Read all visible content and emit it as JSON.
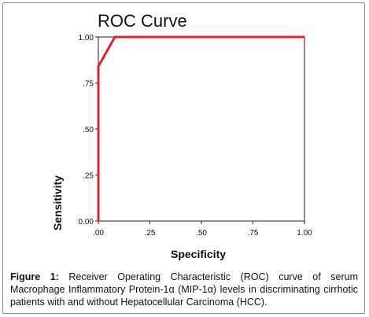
{
  "chart_data": {
    "type": "line",
    "title": "ROC Curve",
    "xlabel": "Specificity",
    "ylabel": "Sensitivity",
    "xlim": [
      0,
      1
    ],
    "ylim": [
      0,
      1
    ],
    "x_ticks": [
      ".00",
      ".25",
      ".50",
      ".75",
      "1.00"
    ],
    "y_ticks": [
      "0.00",
      ".25",
      ".50",
      ".75",
      "1.00"
    ],
    "grid": false,
    "series": [
      {
        "color": "#d7262f",
        "x": [
          0.0,
          0.0,
          0.08,
          1.0
        ],
        "y": [
          0.0,
          0.84,
          1.0,
          1.0
        ]
      }
    ]
  },
  "caption": {
    "label": "Figure 1:",
    "text": "Receiver Operating Characteristic (ROC) curve of serum Macrophage Inflammatory Protein-1α (MIP-1α) levels in discriminating cirrhotic patients with and without Hepatocellular Carcinoma (HCC)."
  }
}
